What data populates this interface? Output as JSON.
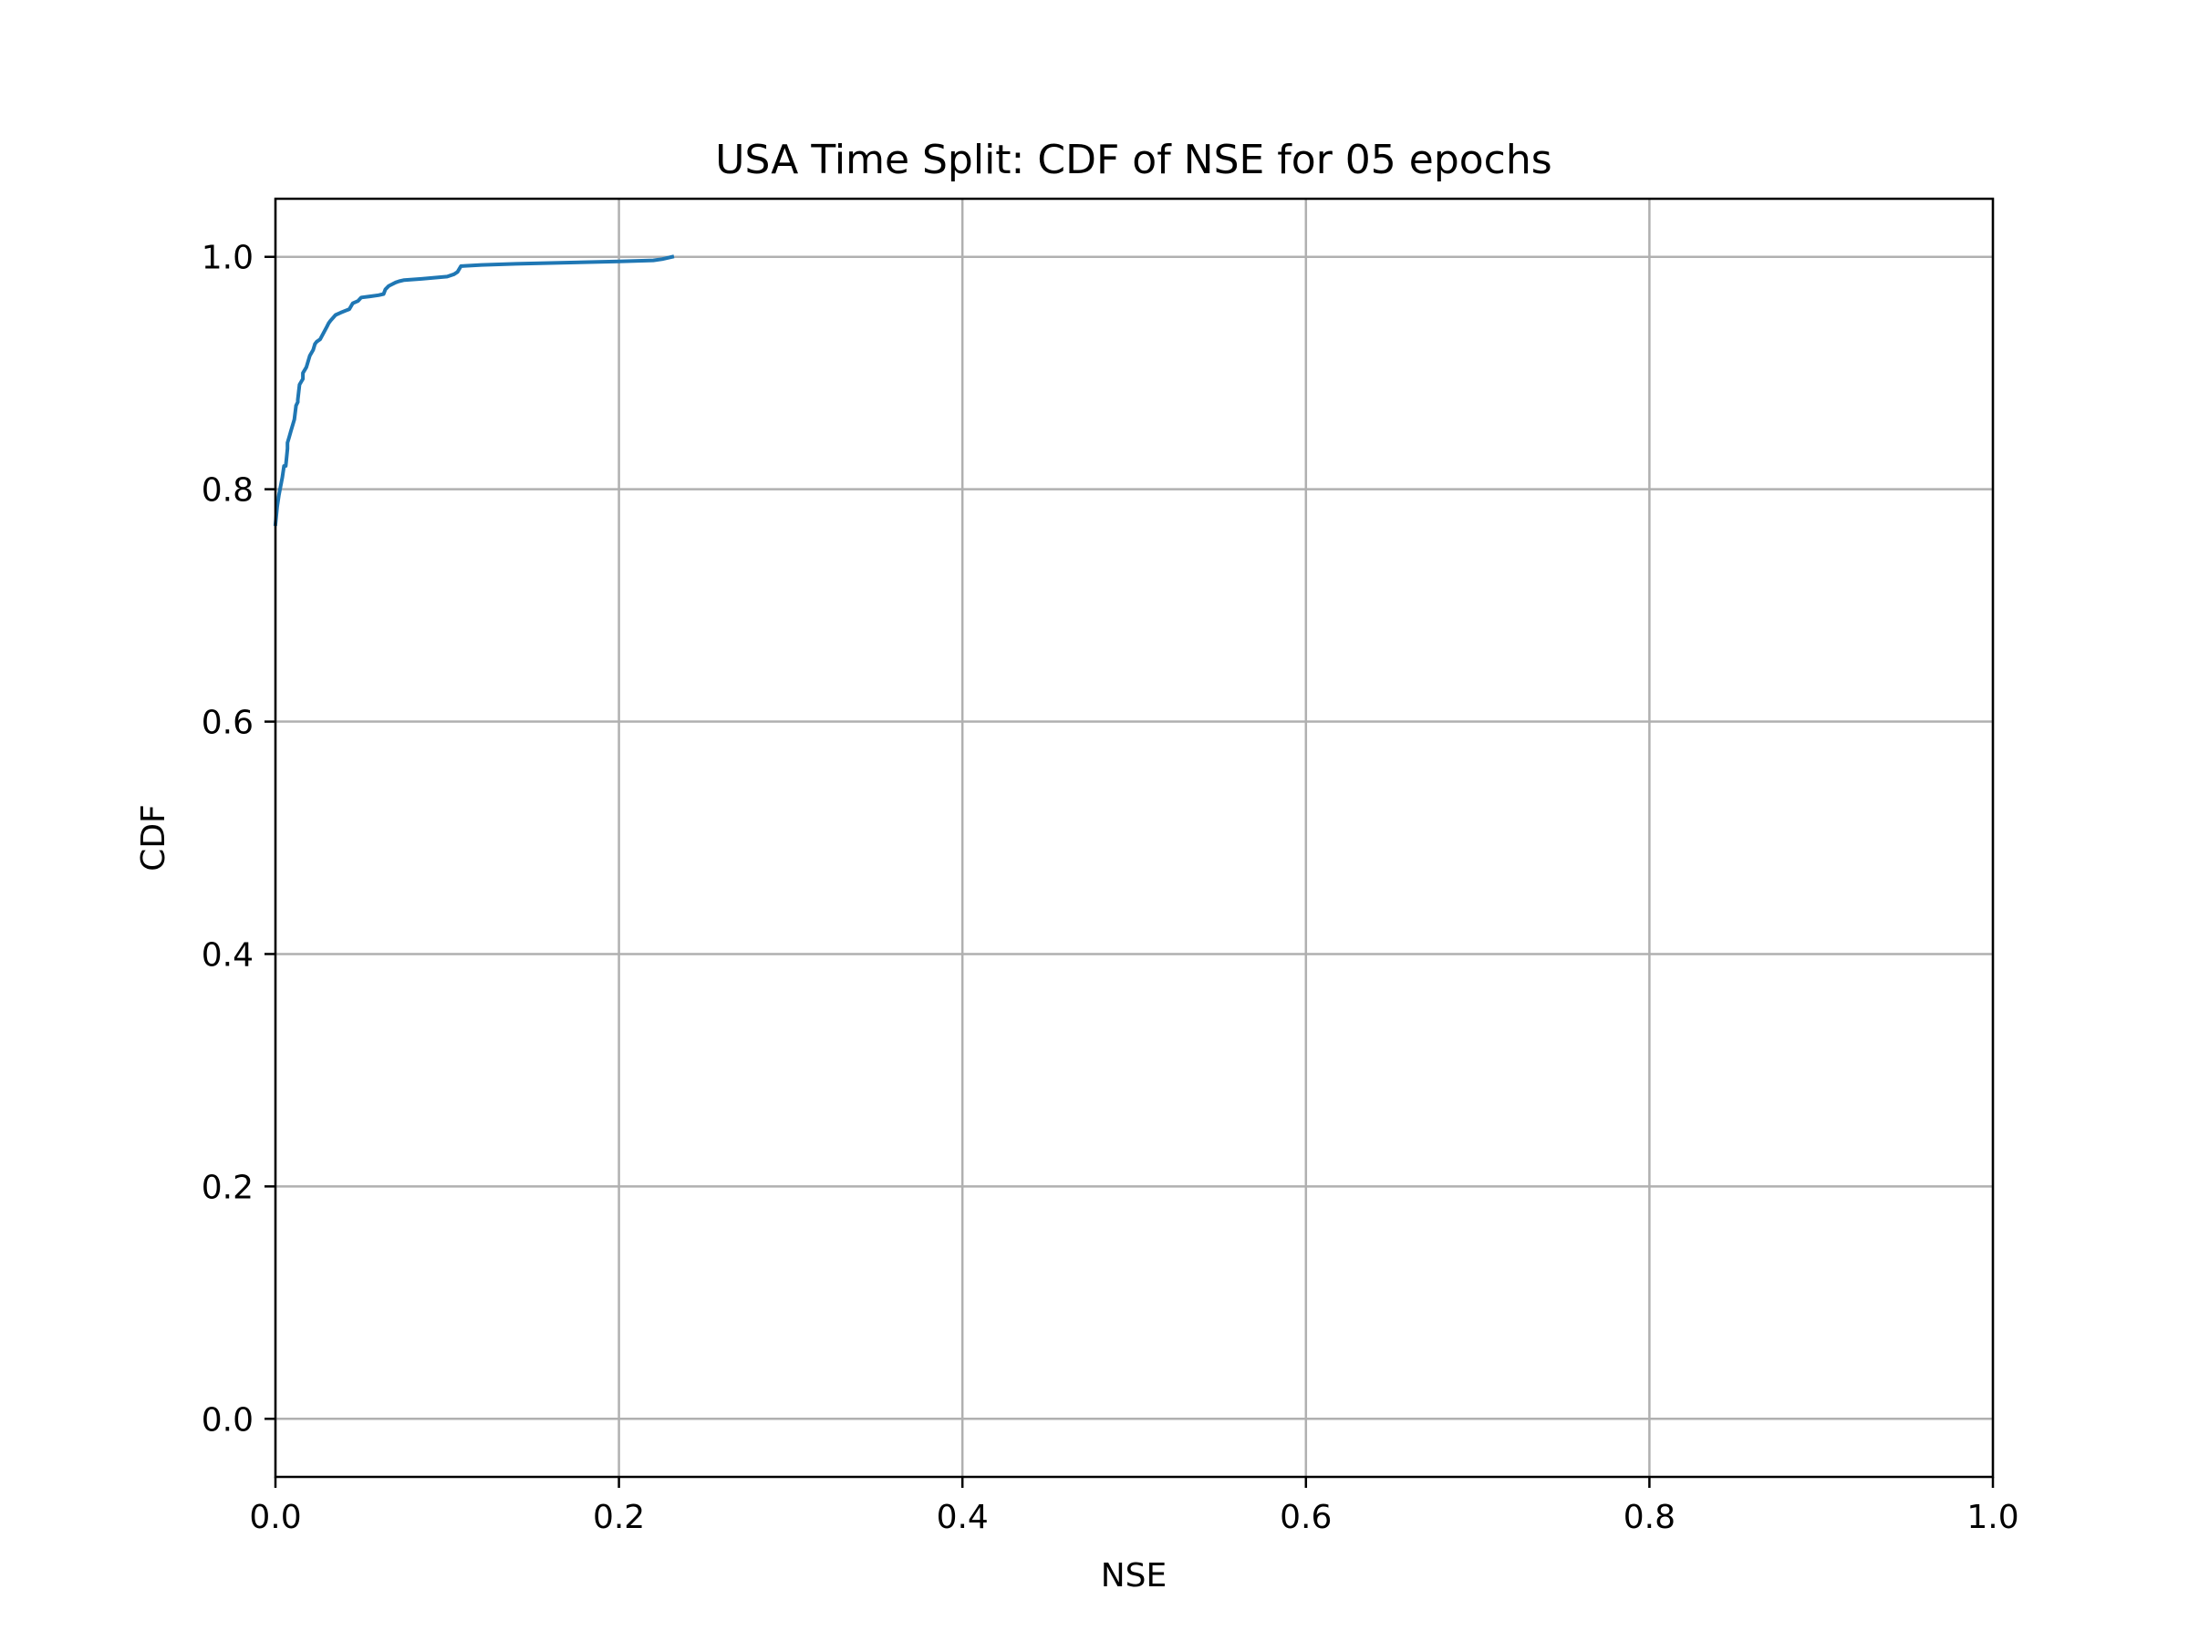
{
  "chart_data": {
    "type": "line",
    "title": "USA Time Split: CDF of NSE for 05 epochs",
    "xlabel": "NSE",
    "ylabel": "CDF",
    "xlim": [
      0.0,
      1.0
    ],
    "ylim": [
      -0.05,
      1.05
    ],
    "grid": true,
    "x_ticks": [
      0.0,
      0.2,
      0.4,
      0.6,
      0.8,
      1.0
    ],
    "x_tick_labels": [
      "0.0",
      "0.2",
      "0.4",
      "0.6",
      "0.8",
      "1.0"
    ],
    "y_ticks": [
      0.0,
      0.2,
      0.4,
      0.6,
      0.8,
      1.0
    ],
    "y_tick_labels": [
      "0.0",
      "0.2",
      "0.4",
      "0.6",
      "0.8",
      "1.0"
    ],
    "colors": {
      "series": "#1f77b4",
      "grid": "#b0b0b0",
      "axes": "#000000"
    },
    "series": [
      {
        "x": [
          0.0,
          0.001,
          0.002,
          0.004,
          0.005,
          0.006,
          0.007,
          0.007,
          0.008,
          0.009,
          0.011,
          0.012,
          0.013,
          0.013,
          0.014,
          0.016,
          0.016,
          0.018,
          0.019,
          0.02,
          0.022,
          0.023,
          0.024,
          0.025,
          0.026,
          0.03,
          0.031,
          0.032,
          0.035,
          0.038,
          0.043,
          0.045,
          0.048,
          0.05,
          0.055,
          0.06,
          0.063,
          0.064,
          0.066,
          0.07,
          0.072,
          0.075,
          0.085,
          0.1,
          0.104,
          0.106,
          0.108,
          0.12,
          0.14,
          0.2,
          0.22,
          0.225,
          0.231
        ],
        "y": [
          0.77,
          0.785,
          0.795,
          0.81,
          0.82,
          0.82,
          0.835,
          0.84,
          0.845,
          0.85,
          0.86,
          0.872,
          0.875,
          0.877,
          0.89,
          0.895,
          0.9,
          0.905,
          0.91,
          0.915,
          0.92,
          0.925,
          0.927,
          0.928,
          0.929,
          0.94,
          0.943,
          0.945,
          0.95,
          0.952,
          0.955,
          0.96,
          0.962,
          0.965,
          0.966,
          0.967,
          0.968,
          0.972,
          0.975,
          0.978,
          0.979,
          0.98,
          0.981,
          0.983,
          0.985,
          0.987,
          0.992,
          0.993,
          0.994,
          0.996,
          0.997,
          0.998,
          1.0
        ]
      }
    ]
  }
}
